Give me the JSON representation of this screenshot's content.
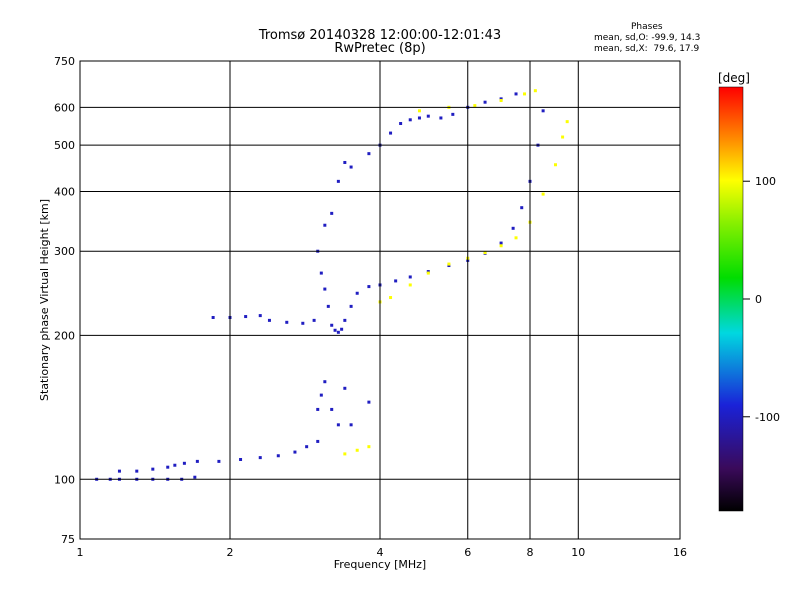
{
  "header": {
    "title_line1": "Tromsø 20140328 12:00:00-12:01:43",
    "title_line2": "RwPretec (8p)",
    "phase_heading": "Phases",
    "phase_o": "mean, sd,O: -99.9, 14.3",
    "phase_x": "mean, sd,X:  79.6, 17.9"
  },
  "colorbar": {
    "unit": "[deg]",
    "ticks": [
      "100",
      "0",
      "-100"
    ],
    "tick_values": [
      100,
      0,
      -100
    ],
    "range": [
      -180,
      180
    ]
  },
  "chart_data": {
    "type": "scatter",
    "title": "Tromsø 20140328 12:00:00-12:01:43",
    "subtitle": "RwPretec (8p)",
    "xlabel": "Frequency [MHz]",
    "ylabel": "Stationary phase Virtual Height [km]",
    "xscale": "log",
    "yscale": "log",
    "xlim": [
      1,
      16
    ],
    "ylim": [
      75,
      750
    ],
    "x_ticks": [
      1,
      2,
      4,
      6,
      8,
      10,
      16
    ],
    "x_tick_labels": [
      "1",
      "2",
      "4",
      "6",
      "8",
      "10",
      "16"
    ],
    "y_ticks": [
      75,
      100,
      200,
      300,
      400,
      500,
      600,
      750
    ],
    "y_tick_labels": [
      "75",
      "100",
      "200",
      "300",
      "400",
      "500",
      "600",
      "750"
    ],
    "grid": true,
    "colorbar": "phase [deg]",
    "series": [
      {
        "phase": -100,
        "points": [
          [
            1.08,
            100
          ],
          [
            1.15,
            100
          ],
          [
            1.2,
            100
          ],
          [
            1.3,
            100
          ],
          [
            1.4,
            100
          ],
          [
            1.5,
            100
          ],
          [
            1.6,
            100
          ],
          [
            1.7,
            101
          ],
          [
            1.2,
            104
          ],
          [
            1.3,
            104
          ],
          [
            1.4,
            105
          ],
          [
            1.5,
            106
          ],
          [
            1.55,
            107
          ],
          [
            1.62,
            108
          ],
          [
            1.72,
            109
          ],
          [
            1.9,
            109
          ],
          [
            2.1,
            110
          ],
          [
            2.3,
            111
          ],
          [
            2.5,
            112
          ],
          [
            2.7,
            114
          ],
          [
            2.85,
            117
          ],
          [
            3.0,
            120
          ],
          [
            3.0,
            140
          ],
          [
            3.05,
            150
          ],
          [
            3.1,
            160
          ],
          [
            3.2,
            140
          ],
          [
            3.3,
            130
          ],
          [
            3.4,
            155
          ],
          [
            3.5,
            130
          ],
          [
            3.8,
            145
          ]
        ]
      },
      {
        "phase": -100,
        "points": [
          [
            1.85,
            218
          ],
          [
            2.0,
            218
          ],
          [
            2.15,
            219
          ],
          [
            2.3,
            220
          ],
          [
            2.4,
            215
          ],
          [
            2.6,
            213
          ],
          [
            2.8,
            212
          ],
          [
            2.95,
            215
          ],
          [
            3.0,
            300
          ],
          [
            3.05,
            270
          ],
          [
            3.1,
            250
          ],
          [
            3.15,
            230
          ],
          [
            3.2,
            210
          ],
          [
            3.25,
            205
          ],
          [
            3.3,
            203
          ],
          [
            3.35,
            206
          ],
          [
            3.4,
            215
          ],
          [
            3.5,
            230
          ],
          [
            3.6,
            245
          ],
          [
            3.8,
            253
          ],
          [
            4.0,
            255
          ],
          [
            4.3,
            260
          ],
          [
            4.6,
            265
          ],
          [
            5.0,
            272
          ],
          [
            5.5,
            280
          ],
          [
            6.0,
            287
          ],
          [
            6.5,
            297
          ],
          [
            7.0,
            312
          ],
          [
            7.4,
            335
          ],
          [
            7.7,
            370
          ],
          [
            8.0,
            420
          ],
          [
            8.3,
            500
          ],
          [
            8.5,
            590
          ]
        ]
      },
      {
        "phase": -100,
        "points": [
          [
            3.1,
            340
          ],
          [
            3.2,
            360
          ],
          [
            3.3,
            420
          ],
          [
            3.4,
            460
          ],
          [
            3.5,
            450
          ],
          [
            3.8,
            480
          ],
          [
            4.0,
            500
          ],
          [
            4.2,
            530
          ],
          [
            4.4,
            555
          ],
          [
            4.6,
            565
          ],
          [
            4.8,
            570
          ],
          [
            5.0,
            575
          ],
          [
            5.3,
            570
          ],
          [
            5.6,
            580
          ],
          [
            6.0,
            600
          ],
          [
            6.5,
            615
          ],
          [
            7.0,
            625
          ],
          [
            7.5,
            640
          ]
        ]
      },
      {
        "phase": 100,
        "points": [
          [
            3.4,
            113
          ],
          [
            3.6,
            115
          ],
          [
            3.8,
            117
          ],
          [
            4.0,
            235
          ],
          [
            4.2,
            240
          ],
          [
            4.6,
            255
          ],
          [
            5.0,
            270
          ],
          [
            5.5,
            282
          ],
          [
            6.0,
            290
          ],
          [
            6.5,
            298
          ],
          [
            7.0,
            308
          ],
          [
            7.5,
            320
          ],
          [
            8.0,
            345
          ],
          [
            8.5,
            395
          ],
          [
            9.0,
            455
          ],
          [
            9.3,
            520
          ],
          [
            9.5,
            560
          ],
          [
            4.8,
            590
          ],
          [
            5.5,
            600
          ],
          [
            6.2,
            605
          ],
          [
            7.0,
            620
          ],
          [
            7.8,
            640
          ],
          [
            8.2,
            650
          ]
        ]
      }
    ]
  }
}
